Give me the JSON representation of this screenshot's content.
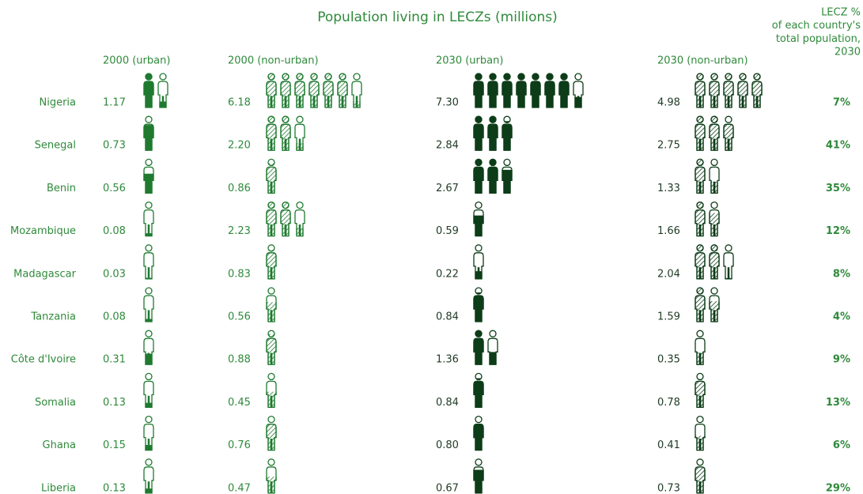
{
  "chart_data": {
    "type": "pictogram",
    "title": "Population living in LECZs (millions)",
    "categories": [
      "Nigeria",
      "Senegal",
      "Benin",
      "Mozambique",
      "Madagascar",
      "Tanzania",
      "Côte d'Ivoire",
      "Somalia",
      "Ghana",
      "Liberia"
    ],
    "series": [
      {
        "name": "2000 (urban)",
        "color": "#1f7a30",
        "hatched": false,
        "values": [
          1.17,
          0.73,
          0.56,
          0.08,
          0.03,
          0.08,
          0.31,
          0.13,
          0.15,
          0.13
        ],
        "value_labels": [
          "1.17",
          "0.73",
          "0.56",
          "0.08",
          "0.03",
          "0.08",
          "0.31",
          "0.13",
          "0.15",
          "0.13"
        ]
      },
      {
        "name": "2000 (non-urban)",
        "color": "#1f7a30",
        "hatched": true,
        "values": [
          6.18,
          2.2,
          0.86,
          2.23,
          0.83,
          0.56,
          0.88,
          0.45,
          0.76,
          0.47
        ],
        "value_labels": [
          "6.18",
          "2.20",
          "0.86",
          "2.23",
          "0.83",
          "0.56",
          "0.88",
          "0.45",
          "0.76",
          "0.47"
        ]
      },
      {
        "name": "2030 (urban)",
        "color": "#0d3d18",
        "hatched": false,
        "values": [
          7.3,
          2.84,
          2.67,
          0.59,
          0.22,
          0.84,
          1.36,
          0.84,
          0.8,
          0.67
        ],
        "value_labels": [
          "7.30",
          "2.84",
          "2.67",
          "0.59",
          "0.22",
          "0.84",
          "1.36",
          "0.84",
          "0.80",
          "0.67"
        ]
      },
      {
        "name": "2030 (non-urban)",
        "color": "#0d3d18",
        "hatched": true,
        "values": [
          4.98,
          2.75,
          1.33,
          1.66,
          2.04,
          1.59,
          0.35,
          0.78,
          0.41,
          0.73
        ],
        "value_labels": [
          "4.98",
          "2.75",
          "1.33",
          "1.66",
          "2.04",
          "1.59",
          "0.35",
          "0.78",
          "0.41",
          "0.73"
        ]
      }
    ],
    "lecz": {
      "label": [
        "LECZ %",
        "of each country's",
        "total population,",
        "2030"
      ],
      "values": [
        7,
        41,
        35,
        12,
        8,
        4,
        9,
        13,
        6,
        29
      ],
      "value_labels": [
        "7%",
        "41%",
        "35%",
        "12%",
        "8%",
        "4%",
        "9%",
        "13%",
        "6%",
        "29%"
      ]
    }
  }
}
